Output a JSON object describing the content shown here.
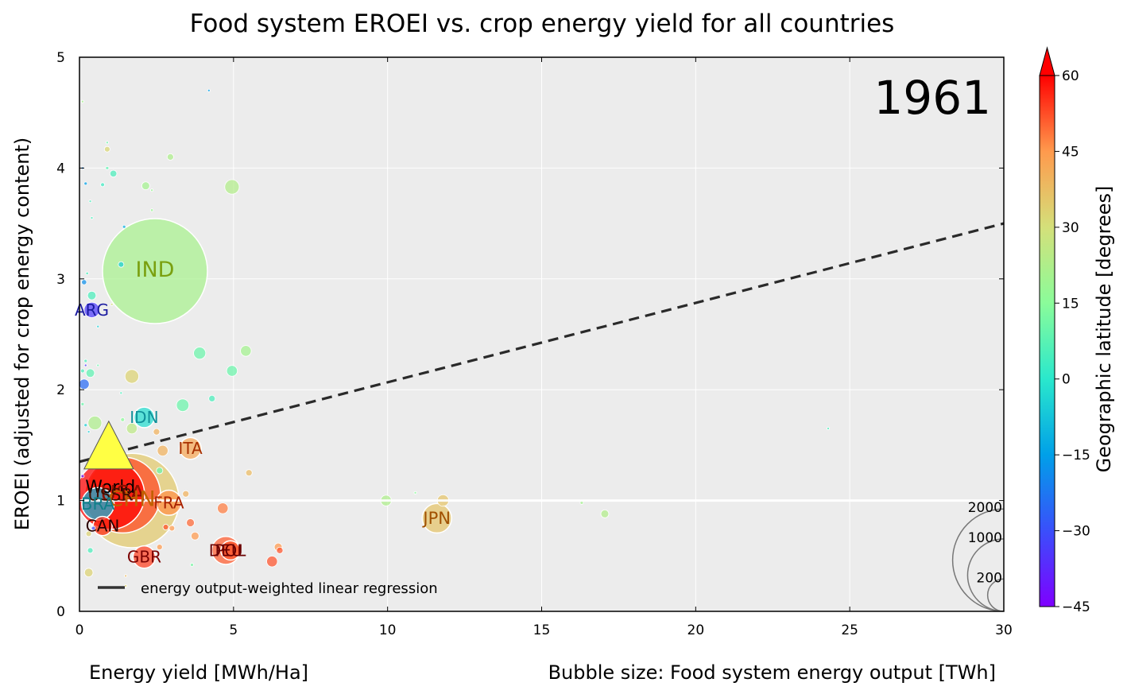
{
  "chart_data": {
    "type": "scatter",
    "title": "Food system EROEI vs. crop energy yield for all countries",
    "year_label": "1961",
    "xlabel": "Energy yield [MWh/Ha]",
    "size_label": "Bubble size: Food system energy output [TWh]",
    "ylabel": "EROEI (adjusted for crop energy content)",
    "colorbar_label": "Geographic latitude [degrees]",
    "xlim": [
      0,
      30
    ],
    "ylim": [
      0,
      5
    ],
    "x_ticks": [
      "0",
      "5",
      "10",
      "15",
      "20",
      "25",
      "30"
    ],
    "y_ticks": [
      "0",
      "1",
      "2",
      "3",
      "4",
      "5"
    ],
    "colorbar_ticks": [
      "−45",
      "−30",
      "−15",
      "0",
      "15",
      "30",
      "45",
      "60"
    ],
    "colorbar_range": [
      -45,
      60
    ],
    "grid": true,
    "background": "#ececec",
    "legend_placement": "lower-left",
    "legend_label": "energy output-weighted linear regression",
    "regression": {
      "x": [
        0,
        30
      ],
      "y": [
        1.35,
        3.5
      ]
    },
    "reference_line_y": 1,
    "size_legend": {
      "values": [
        200,
        1000,
        2000
      ],
      "labels": [
        "200",
        "1000",
        "2000"
      ]
    },
    "world_marker": {
      "label": "World",
      "x": 0.95,
      "y": 1.5,
      "color": "#ffff44"
    },
    "labeled_countries": [
      {
        "code": "IND",
        "x": 2.45,
        "y": 3.07,
        "size": 2100,
        "lat": 21,
        "label_color": "#7aa010"
      },
      {
        "code": "ARG",
        "x": 0.4,
        "y": 2.72,
        "size": 45,
        "lat": -34,
        "label_color": "#1a1aa0"
      },
      {
        "code": "IDN",
        "x": 2.1,
        "y": 1.75,
        "size": 80,
        "lat": -2,
        "label_color": "#10909a"
      },
      {
        "code": "ITA",
        "x": 3.6,
        "y": 1.47,
        "size": 90,
        "lat": 42,
        "label_color": "#a83000"
      },
      {
        "code": "USA",
        "x": 1.4,
        "y": 1.05,
        "size": 1100,
        "lat": 53,
        "label_color": "#8a1000"
      },
      {
        "code": "CHN",
        "x": 1.7,
        "y": 1.0,
        "size": 1700,
        "lat": 35,
        "label_color": "#c06000"
      },
      {
        "code": "USSR",
        "x": 1.0,
        "y": 1.05,
        "size": 900,
        "lat": 60,
        "label_color": "#401000"
      },
      {
        "code": "BRA",
        "x": 0.6,
        "y": 0.97,
        "size": 200,
        "lat": -10,
        "label_color": "#10808a"
      },
      {
        "code": "FRA",
        "x": 2.9,
        "y": 0.98,
        "size": 120,
        "lat": 46,
        "label_color": "#a82000"
      },
      {
        "code": "CAN",
        "x": 0.75,
        "y": 0.77,
        "size": 70,
        "lat": 56,
        "label_color": "#2a0000"
      },
      {
        "code": "GBR",
        "x": 2.1,
        "y": 0.49,
        "size": 95,
        "lat": 54,
        "label_color": "#7a0000"
      },
      {
        "code": "DEU",
        "x": 4.75,
        "y": 0.55,
        "size": 150,
        "lat": 51,
        "label_color": "#6a0000"
      },
      {
        "code": "POL",
        "x": 4.9,
        "y": 0.55,
        "size": 70,
        "lat": 52,
        "label_color": "#6a0000"
      },
      {
        "code": "JPN",
        "x": 11.6,
        "y": 0.84,
        "size": 165,
        "lat": 36,
        "label_color": "#a05000"
      }
    ],
    "other_countries": [
      {
        "x": 0.1,
        "y": 4.6,
        "size": 0.5,
        "lat": 20
      },
      {
        "x": 4.2,
        "y": 4.7,
        "size": 0.5,
        "lat": -15
      },
      {
        "x": 0.9,
        "y": 4.23,
        "size": 0.5,
        "lat": 10
      },
      {
        "x": 0.9,
        "y": 4.17,
        "size": 6,
        "lat": 32
      },
      {
        "x": 2.95,
        "y": 4.1,
        "size": 8,
        "lat": 22
      },
      {
        "x": 0.1,
        "y": 4.0,
        "size": 0.8,
        "lat": -20
      },
      {
        "x": 0.9,
        "y": 4.0,
        "size": 2,
        "lat": 8
      },
      {
        "x": 1.1,
        "y": 3.95,
        "size": 9,
        "lat": 5
      },
      {
        "x": 0.75,
        "y": 3.85,
        "size": 3,
        "lat": 3
      },
      {
        "x": 0.2,
        "y": 3.86,
        "size": 2,
        "lat": -15
      },
      {
        "x": 2.15,
        "y": 3.84,
        "size": 12,
        "lat": 20
      },
      {
        "x": 2.35,
        "y": 3.8,
        "size": 1,
        "lat": 18
      },
      {
        "x": 4.95,
        "y": 3.83,
        "size": 40,
        "lat": 23
      },
      {
        "x": 0.35,
        "y": 3.7,
        "size": 0.8,
        "lat": 5
      },
      {
        "x": 2.35,
        "y": 3.62,
        "size": 1.5,
        "lat": 18
      },
      {
        "x": 0.4,
        "y": 3.55,
        "size": 1,
        "lat": 5
      },
      {
        "x": 1.45,
        "y": 3.47,
        "size": 2,
        "lat": -12
      },
      {
        "x": 1.35,
        "y": 3.13,
        "size": 6,
        "lat": -5
      },
      {
        "x": 0.25,
        "y": 3.05,
        "size": 1.5,
        "lat": 5
      },
      {
        "x": 0.15,
        "y": 2.97,
        "size": 5,
        "lat": -18
      },
      {
        "x": 0.4,
        "y": 2.85,
        "size": 14,
        "lat": 5
      },
      {
        "x": 1.05,
        "y": 2.77,
        "size": 1,
        "lat": 30
      },
      {
        "x": 0.6,
        "y": 2.57,
        "size": 1,
        "lat": -5
      },
      {
        "x": 3.9,
        "y": 2.33,
        "size": 28,
        "lat": 10
      },
      {
        "x": 5.4,
        "y": 2.35,
        "size": 22,
        "lat": 20
      },
      {
        "x": 0.2,
        "y": 2.26,
        "size": 2,
        "lat": 5
      },
      {
        "x": 0.2,
        "y": 2.22,
        "size": 1,
        "lat": -35
      },
      {
        "x": 0.1,
        "y": 2.17,
        "size": 3,
        "lat": 5
      },
      {
        "x": 0.35,
        "y": 2.15,
        "size": 14,
        "lat": 8
      },
      {
        "x": 0.6,
        "y": 2.22,
        "size": 1,
        "lat": 10
      },
      {
        "x": 1.7,
        "y": 2.12,
        "size": 36,
        "lat": 33
      },
      {
        "x": 4.95,
        "y": 2.17,
        "size": 22,
        "lat": 10
      },
      {
        "x": 0.15,
        "y": 2.05,
        "size": 20,
        "lat": -25
      },
      {
        "x": 1.35,
        "y": 1.97,
        "size": 1,
        "lat": 5
      },
      {
        "x": 3.35,
        "y": 1.86,
        "size": 30,
        "lat": 10
      },
      {
        "x": 4.3,
        "y": 1.92,
        "size": 8,
        "lat": 5
      },
      {
        "x": 0.1,
        "y": 1.87,
        "size": 2,
        "lat": 10
      },
      {
        "x": 0.5,
        "y": 1.7,
        "size": 36,
        "lat": 22
      },
      {
        "x": 0.2,
        "y": 1.68,
        "size": 2,
        "lat": -5
      },
      {
        "x": 0.3,
        "y": 1.62,
        "size": 1,
        "lat": -5
      },
      {
        "x": 1.7,
        "y": 1.65,
        "size": 22,
        "lat": 25
      },
      {
        "x": 1.4,
        "y": 1.73,
        "size": 3,
        "lat": 15
      },
      {
        "x": 2.5,
        "y": 1.62,
        "size": 8,
        "lat": 40
      },
      {
        "x": 2.7,
        "y": 1.45,
        "size": 22,
        "lat": 40
      },
      {
        "x": 2.6,
        "y": 1.27,
        "size": 8,
        "lat": 10
      },
      {
        "x": 0.35,
        "y": 1.35,
        "size": 6,
        "lat": -20
      },
      {
        "x": 0.1,
        "y": 1.22,
        "size": 2,
        "lat": -40
      },
      {
        "x": 5.5,
        "y": 1.25,
        "size": 8,
        "lat": 38
      },
      {
        "x": 3.45,
        "y": 1.06,
        "size": 8,
        "lat": 40
      },
      {
        "x": 9.95,
        "y": 1.0,
        "size": 22,
        "lat": 22
      },
      {
        "x": 10.9,
        "y": 1.07,
        "size": 1,
        "lat": 15
      },
      {
        "x": 11.8,
        "y": 1.0,
        "size": 25,
        "lat": 36
      },
      {
        "x": 4.65,
        "y": 0.93,
        "size": 22,
        "lat": 48
      },
      {
        "x": 16.3,
        "y": 0.98,
        "size": 2,
        "lat": 20
      },
      {
        "x": 17.05,
        "y": 0.88,
        "size": 12,
        "lat": 23
      },
      {
        "x": 3.6,
        "y": 0.8,
        "size": 12,
        "lat": 50
      },
      {
        "x": 2.8,
        "y": 0.76,
        "size": 6,
        "lat": 52
      },
      {
        "x": 3.0,
        "y": 0.75,
        "size": 6,
        "lat": 45
      },
      {
        "x": 0.45,
        "y": 0.75,
        "size": 3,
        "lat": -30
      },
      {
        "x": 0.3,
        "y": 0.7,
        "size": 6,
        "lat": 33
      },
      {
        "x": 3.75,
        "y": 0.68,
        "size": 12,
        "lat": 45
      },
      {
        "x": 2.6,
        "y": 0.58,
        "size": 6,
        "lat": 45
      },
      {
        "x": 6.45,
        "y": 0.58,
        "size": 12,
        "lat": 45
      },
      {
        "x": 6.5,
        "y": 0.55,
        "size": 8,
        "lat": 52
      },
      {
        "x": 0.35,
        "y": 0.55,
        "size": 6,
        "lat": 5
      },
      {
        "x": 3.65,
        "y": 0.42,
        "size": 2,
        "lat": 12
      },
      {
        "x": 6.25,
        "y": 0.45,
        "size": 22,
        "lat": 52
      },
      {
        "x": 0.3,
        "y": 0.35,
        "size": 14,
        "lat": 33
      },
      {
        "x": 1.5,
        "y": 0.32,
        "size": 0.5,
        "lat": 38
      },
      {
        "x": 1.5,
        "y": 0.23,
        "size": 1,
        "lat": 33
      },
      {
        "x": 24.3,
        "y": 1.65,
        "size": 0.5,
        "lat": 5
      }
    ]
  }
}
